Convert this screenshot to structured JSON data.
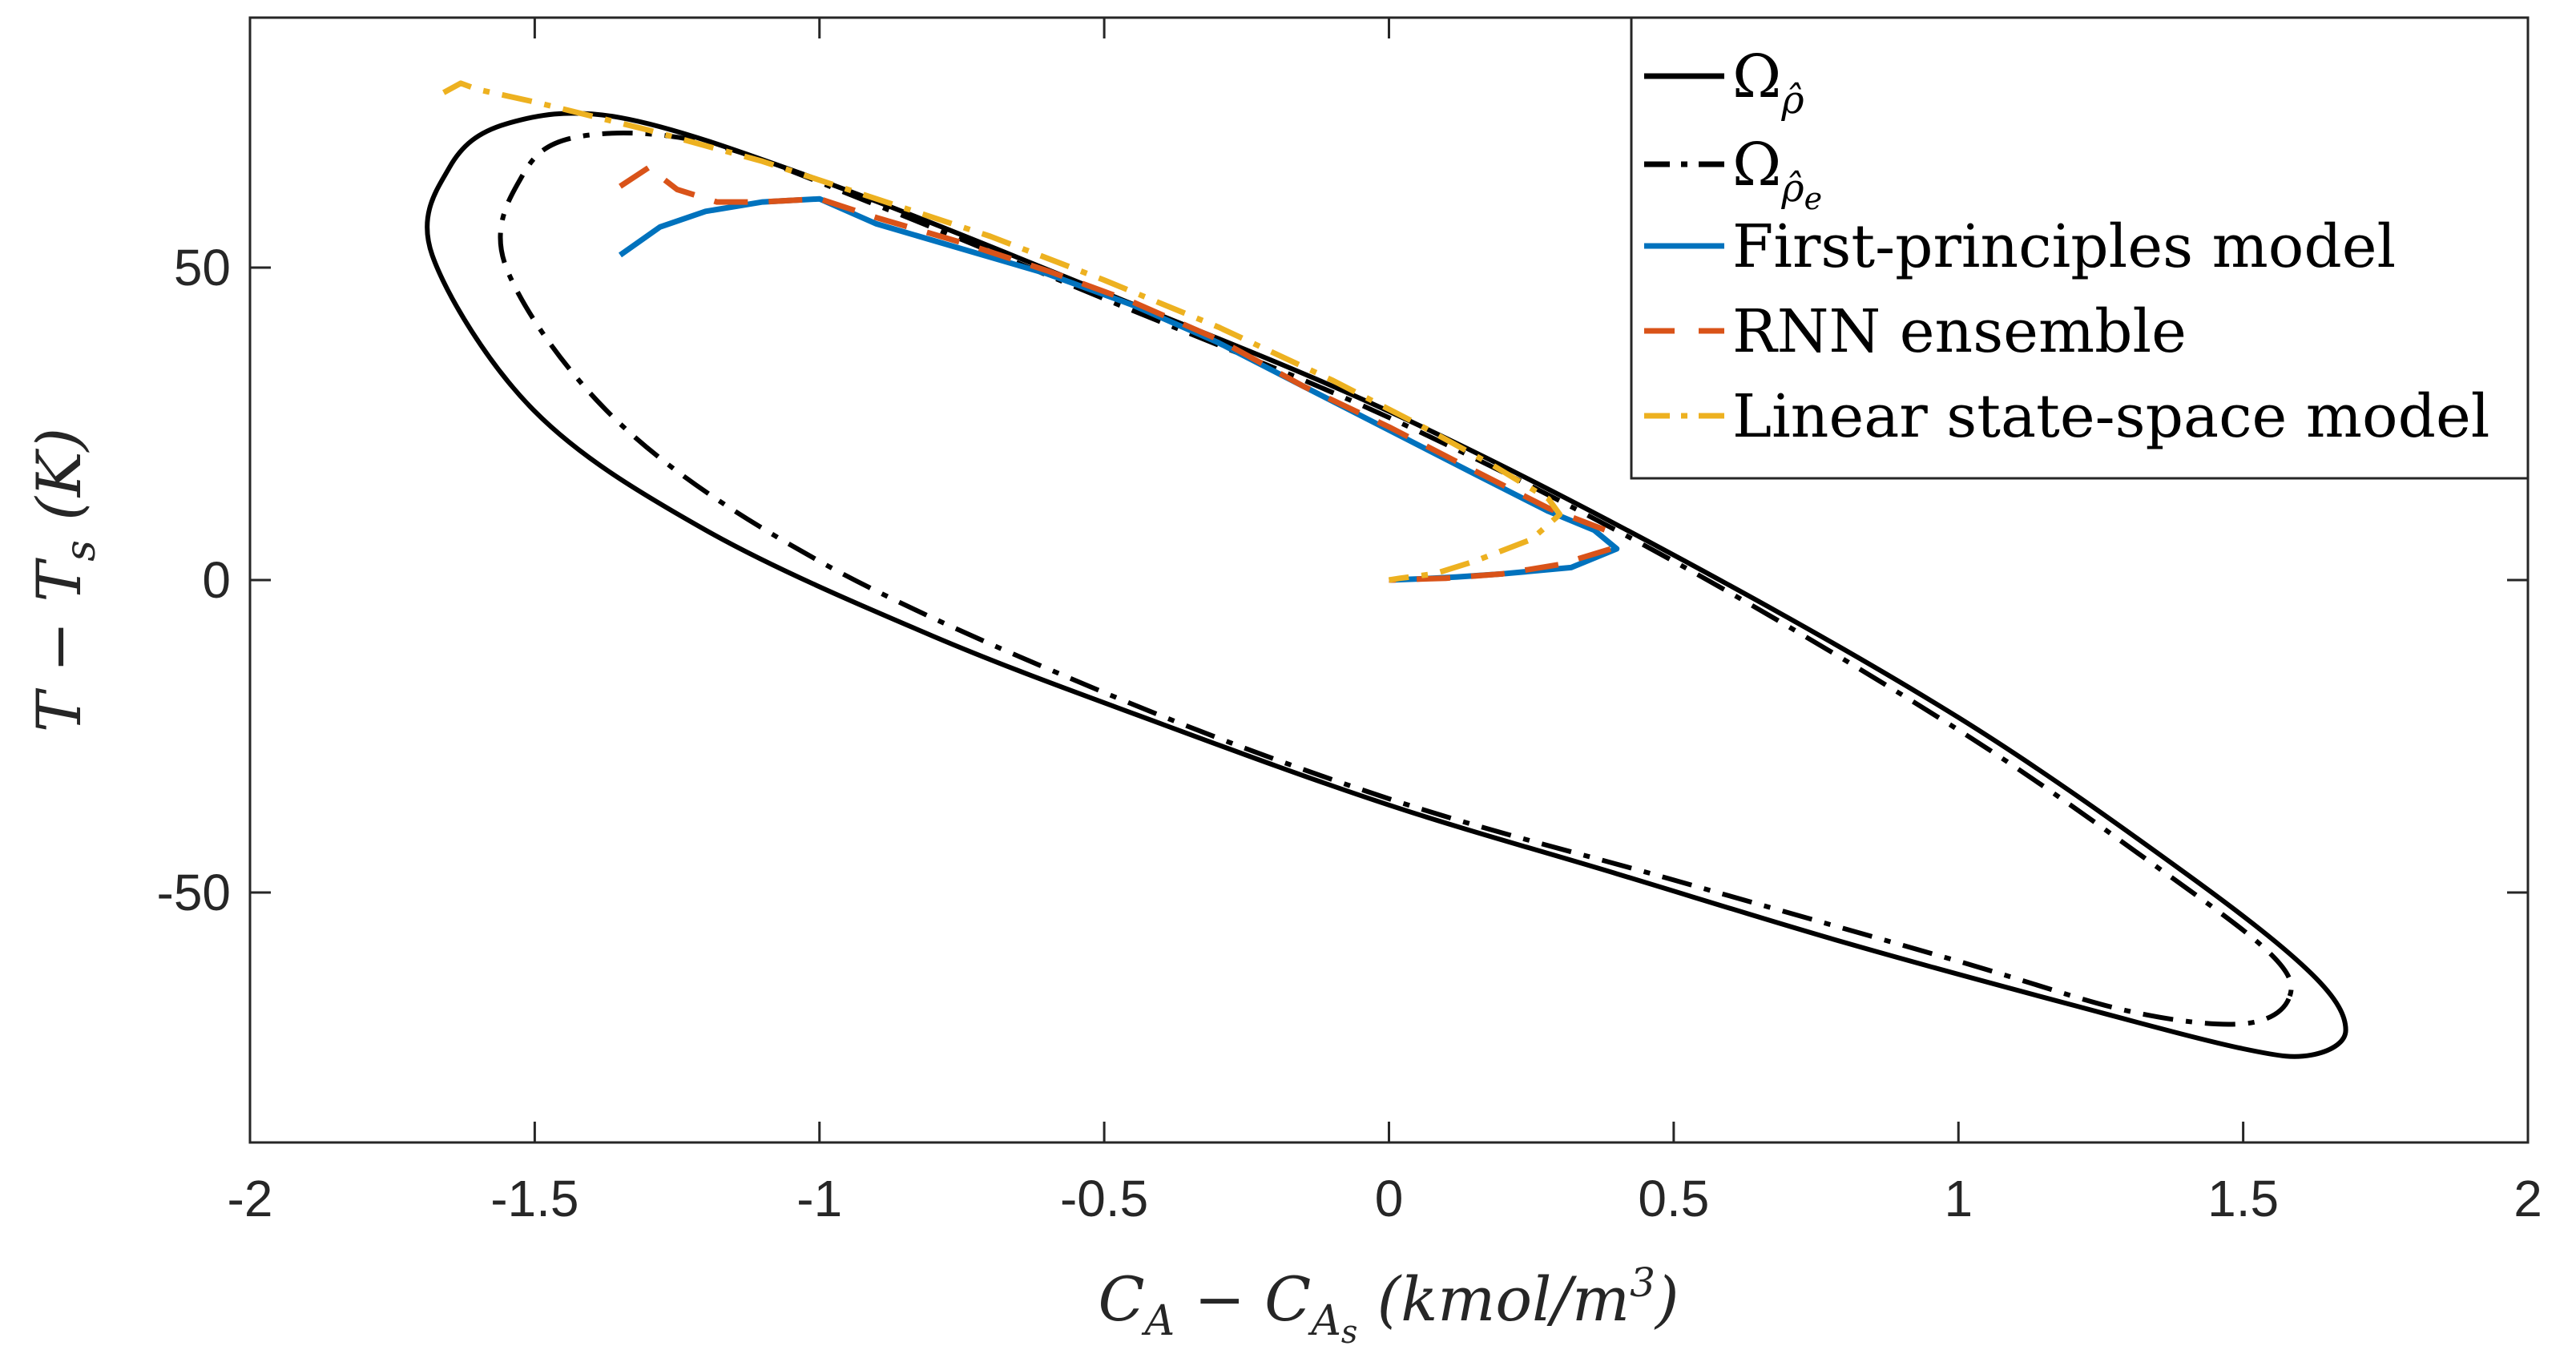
{
  "chart_data": {
    "type": "line",
    "title": "",
    "xlabel": "C_A − C_As (kmol/m³)",
    "xlabel_parts": {
      "main": "C",
      "sub": "A",
      "minus": " − ",
      "main2": "C",
      "sub2": "A",
      "subsub2": "s",
      "units": " (kmol/m",
      "sup": "3",
      "close": ")"
    },
    "ylabel": "T − T_s (K)",
    "ylabel_parts": {
      "main": "T − T",
      "sub": "s",
      "units": " (K)"
    },
    "xlim": [
      -2,
      2
    ],
    "ylim": [
      -90,
      90
    ],
    "x_ticks": [
      -2,
      -1.5,
      -1,
      -0.5,
      0,
      0.5,
      1,
      1.5,
      2
    ],
    "x_tick_labels": [
      "-2",
      "-1.5",
      "-1",
      "-0.5",
      "0",
      "0.5",
      "1",
      "1.5",
      "2"
    ],
    "y_ticks": [
      -50,
      0,
      50
    ],
    "y_tick_labels": [
      "-50",
      "0",
      "50"
    ],
    "grid": false,
    "legend_position": "top-right",
    "legend": [
      {
        "label": "Ω",
        "sub": "ρ̂",
        "sub_sub": "",
        "style": "solid",
        "color": "#000000"
      },
      {
        "label": "Ω",
        "sub": "ρ̂",
        "sub_sub": "e",
        "style": "dashdot",
        "color": "#000000"
      },
      {
        "label": "First-principles model",
        "sub": "",
        "sub_sub": "",
        "style": "solid",
        "color": "#0072BD"
      },
      {
        "label": "RNN ensemble",
        "sub": "",
        "sub_sub": "",
        "style": "dashed",
        "color": "#D95319"
      },
      {
        "label": "Linear state-space model",
        "sub": "",
        "sub_sub": "",
        "style": "dashdot",
        "color": "#EDB120"
      }
    ],
    "series": [
      {
        "name": "Ω_ρ̂",
        "kind": "ellipse",
        "style": "solid",
        "color": "#000000",
        "points": [
          [
            1.68,
            -72
          ],
          [
            1.62,
            -76
          ],
          [
            1.5,
            -75
          ],
          [
            1.2,
            -68
          ],
          [
            0.8,
            -58
          ],
          [
            0.4,
            -47
          ],
          [
            0,
            -36
          ],
          [
            -0.4,
            -23
          ],
          [
            -0.8,
            -9
          ],
          [
            -1.2,
            8
          ],
          [
            -1.5,
            27
          ],
          [
            -1.68,
            52
          ],
          [
            -1.65,
            66
          ],
          [
            -1.55,
            73
          ],
          [
            -1.35,
            74
          ],
          [
            -1,
            64
          ],
          [
            -0.5,
            46
          ],
          [
            0,
            27
          ],
          [
            0.5,
            4
          ],
          [
            1,
            -22
          ],
          [
            1.4,
            -47
          ],
          [
            1.62,
            -63
          ],
          [
            1.68,
            -72
          ]
        ]
      },
      {
        "name": "Ω_ρ̂e",
        "kind": "ellipse",
        "style": "dashdot",
        "color": "#000000",
        "points": [
          [
            1.58,
            -67
          ],
          [
            1.5,
            -71
          ],
          [
            1.3,
            -69
          ],
          [
            1,
            -61
          ],
          [
            0.5,
            -48
          ],
          [
            0,
            -35
          ],
          [
            -0.5,
            -18
          ],
          [
            -1,
            3
          ],
          [
            -1.35,
            25
          ],
          [
            -1.55,
            50
          ],
          [
            -1.52,
            65
          ],
          [
            -1.42,
            71
          ],
          [
            -1.2,
            70
          ],
          [
            -0.9,
            60
          ],
          [
            -0.5,
            45
          ],
          [
            0,
            26
          ],
          [
            0.5,
            3
          ],
          [
            1,
            -24
          ],
          [
            1.35,
            -46
          ],
          [
            1.55,
            -60
          ],
          [
            1.58,
            -67
          ]
        ]
      },
      {
        "name": "First-principles model",
        "style": "solid",
        "color": "#0072BD",
        "points": [
          [
            -1.35,
            52
          ],
          [
            -1.28,
            56.5
          ],
          [
            -1.2,
            59
          ],
          [
            -1.1,
            60.5
          ],
          [
            -1,
            61
          ],
          [
            -0.9,
            57
          ],
          [
            -0.75,
            53
          ],
          [
            -0.6,
            49
          ],
          [
            -0.45,
            44
          ],
          [
            -0.3,
            38
          ],
          [
            -0.15,
            31
          ],
          [
            0,
            24
          ],
          [
            0.15,
            17
          ],
          [
            0.28,
            11
          ],
          [
            0.36,
            8
          ],
          [
            0.4,
            5
          ],
          [
            0.32,
            2
          ],
          [
            0.2,
            1
          ],
          [
            0.12,
            0.5
          ],
          [
            0.06,
            0.2
          ],
          [
            0,
            0
          ]
        ]
      },
      {
        "name": "RNN ensemble",
        "style": "dashed",
        "color": "#D95319",
        "points": [
          [
            -1.35,
            63
          ],
          [
            -1.3,
            66
          ],
          [
            -1.25,
            62.5
          ],
          [
            -1.18,
            60.5
          ],
          [
            -1.1,
            60.5
          ],
          [
            -1,
            61
          ],
          [
            -0.9,
            58
          ],
          [
            -0.75,
            54
          ],
          [
            -0.6,
            49.5
          ],
          [
            -0.45,
            44.5
          ],
          [
            -0.3,
            38.5
          ],
          [
            -0.15,
            31
          ],
          [
            0,
            24.5
          ],
          [
            0.15,
            17.5
          ],
          [
            0.28,
            11.5
          ],
          [
            0.38,
            8
          ],
          [
            0.39,
            5
          ],
          [
            0.3,
            2.5
          ],
          [
            0.2,
            1
          ],
          [
            0.1,
            0.3
          ],
          [
            0,
            0
          ]
        ]
      },
      {
        "name": "Linear state-space model",
        "style": "dashdot",
        "color": "#EDB120",
        "points": [
          [
            -1.66,
            78
          ],
          [
            -1.63,
            79.5
          ],
          [
            -1.6,
            78.5
          ],
          [
            -1.5,
            76.5
          ],
          [
            -1.3,
            72
          ],
          [
            -1.1,
            67
          ],
          [
            -0.9,
            61
          ],
          [
            -0.7,
            55
          ],
          [
            -0.5,
            48
          ],
          [
            -0.3,
            40.5
          ],
          [
            -0.1,
            32
          ],
          [
            0.05,
            25
          ],
          [
            0.18,
            18.5
          ],
          [
            0.28,
            13
          ],
          [
            0.3,
            10.5
          ],
          [
            0.25,
            6.5
          ],
          [
            0.15,
            3
          ],
          [
            0.08,
            1
          ],
          [
            0.02,
            0.3
          ],
          [
            0,
            0
          ]
        ]
      }
    ]
  }
}
